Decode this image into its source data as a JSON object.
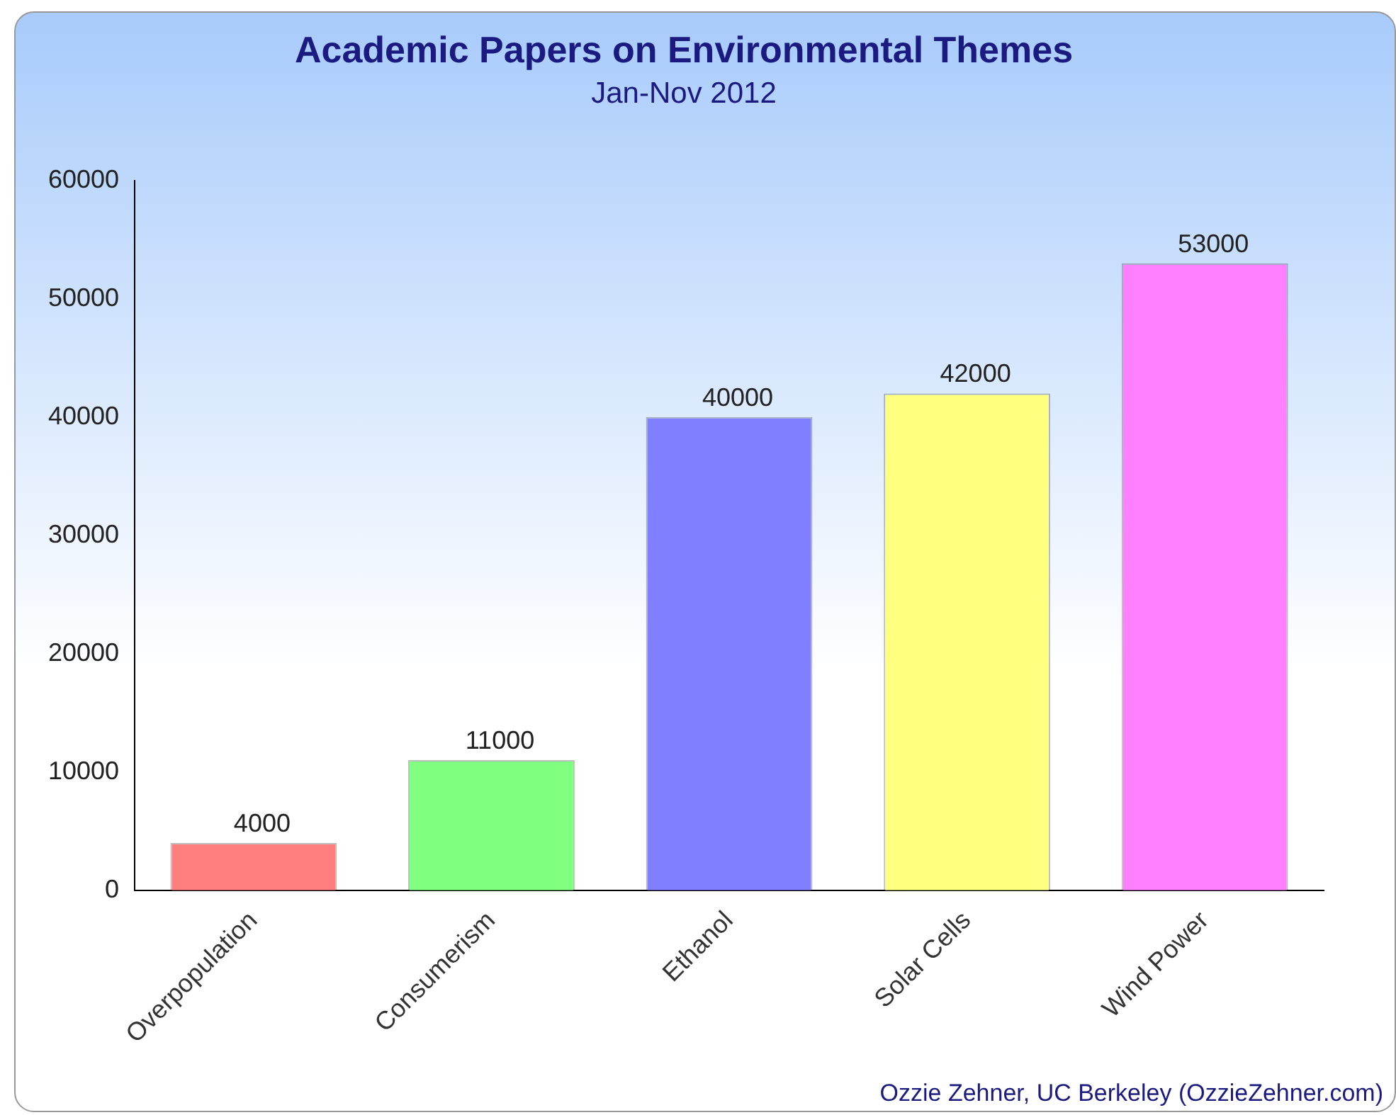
{
  "chart_data": {
    "type": "bar",
    "title": "Academic Papers on Environmental Themes",
    "subtitle": "Jan-Nov 2012",
    "categories": [
      "Overpopulation",
      "Consumerism",
      "Ethanol",
      "Solar Cells",
      "Wind Power"
    ],
    "values": [
      4000,
      11000,
      40000,
      42000,
      53000
    ],
    "colors": [
      "#ff7f7f",
      "#80ff80",
      "#7f7fff",
      "#ffff80",
      "#ff80ff"
    ],
    "ylim": [
      0,
      60000
    ],
    "yticks": [
      0,
      10000,
      20000,
      30000,
      40000,
      50000,
      60000
    ],
    "grid": false,
    "legend": false,
    "data_labels": true,
    "annotations": [
      "Ozzie Zehner, UC Berkeley (OzzieZehner.com)"
    ]
  }
}
